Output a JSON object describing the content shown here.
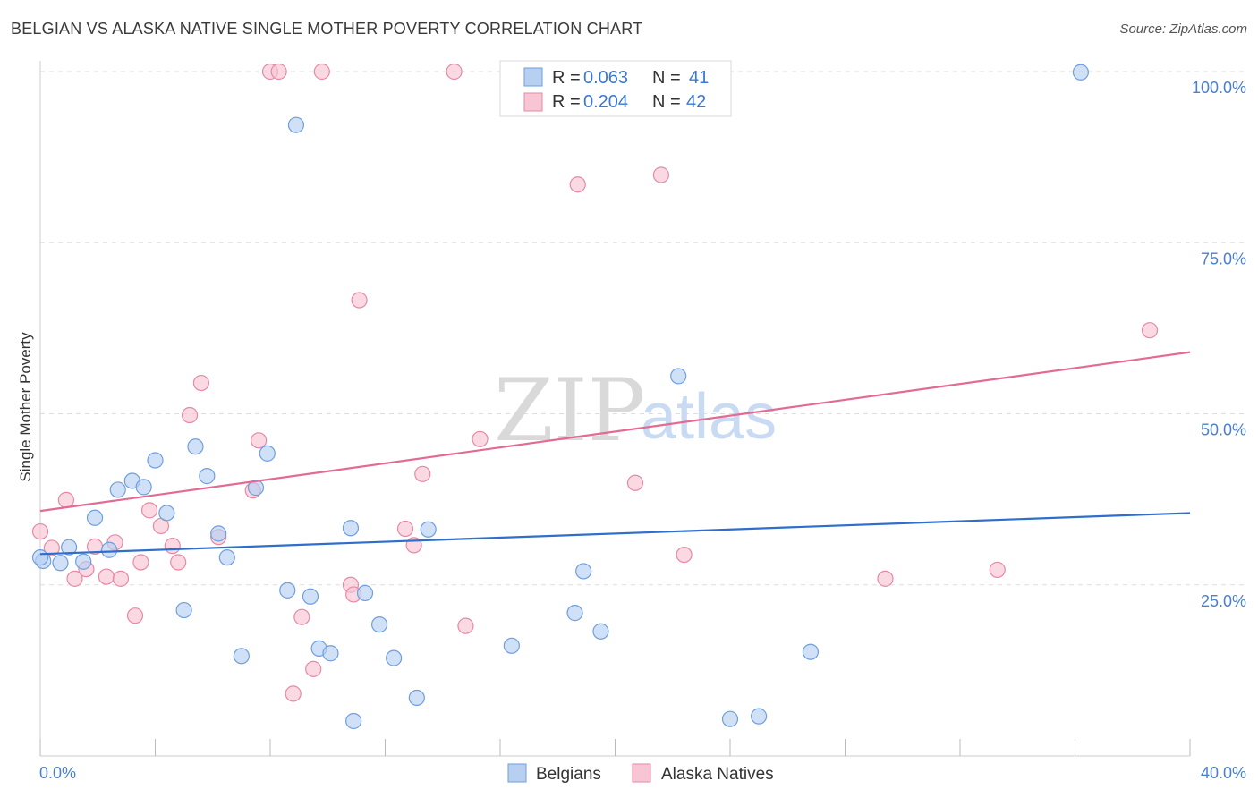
{
  "header": {
    "title": "BELGIAN VS ALASKA NATIVE SINGLE MOTHER POVERTY CORRELATION CHART",
    "source": "Source: ZipAtlas.com"
  },
  "watermark": {
    "zip": "ZIP",
    "atlas": "atlas"
  },
  "legend": {
    "rows": [
      {
        "r_label": "R = ",
        "r_value": "0.063",
        "n_label": "N = ",
        "n_value": "41"
      },
      {
        "r_label": "R = ",
        "r_value": "0.204",
        "n_label": "N = ",
        "n_value": "42"
      }
    ]
  },
  "bottom_legend": {
    "belgians": "Belgians",
    "alaska": "Alaska Natives"
  },
  "colors": {
    "belgians_fill": "#b7d0f2",
    "belgians_stroke": "#6f9fdc",
    "belgians_line": "#2f6fcc",
    "alaska_fill": "#f7c5d3",
    "alaska_stroke": "#e58aa6",
    "alaska_line": "#e36b93",
    "grid": "#dddddd",
    "axis_label": "#4a7fcf"
  },
  "chart_data": {
    "type": "scatter",
    "title": "BELGIAN VS ALASKA NATIVE SINGLE MOTHER POVERTY CORRELATION CHART",
    "xlabel": "",
    "ylabel": "Single Mother Poverty",
    "xlim": [
      0,
      40
    ],
    "ylim": [
      0,
      100
    ],
    "x_tick_labels": [
      "0.0%",
      "40.0%"
    ],
    "y_tick_labels": [
      "25.0%",
      "50.0%",
      "75.0%",
      "100.0%"
    ],
    "y_ticks": [
      25,
      50,
      75,
      100
    ],
    "grid": true,
    "series": [
      {
        "name": "Belgians",
        "R": 0.063,
        "N": 41,
        "trend": {
          "x": [
            0,
            40
          ],
          "y": [
            29.5,
            35.5
          ]
        },
        "points": [
          [
            0.1,
            28.5
          ],
          [
            0.7,
            28.2
          ],
          [
            1.0,
            30.5
          ],
          [
            1.5,
            28.4
          ],
          [
            1.9,
            34.8
          ],
          [
            2.4,
            30.1
          ],
          [
            2.7,
            38.9
          ],
          [
            3.2,
            40.2
          ],
          [
            3.6,
            39.3
          ],
          [
            4.0,
            43.2
          ],
          [
            4.4,
            35.5
          ],
          [
            5.0,
            21.3
          ],
          [
            5.4,
            45.2
          ],
          [
            5.8,
            40.9
          ],
          [
            6.2,
            32.5
          ],
          [
            6.5,
            29.0
          ],
          [
            7.0,
            14.6
          ],
          [
            7.5,
            39.2
          ],
          [
            7.9,
            44.2
          ],
          [
            8.6,
            24.2
          ],
          [
            8.9,
            92.2
          ],
          [
            9.4,
            23.3
          ],
          [
            9.7,
            15.7
          ],
          [
            10.1,
            15.0
          ],
          [
            10.8,
            33.3
          ],
          [
            10.9,
            5.1
          ],
          [
            11.3,
            23.8
          ],
          [
            11.8,
            19.2
          ],
          [
            12.3,
            14.3
          ],
          [
            13.1,
            8.5
          ],
          [
            13.5,
            33.1
          ],
          [
            16.4,
            16.1
          ],
          [
            18.6,
            20.9
          ],
          [
            18.9,
            27.0
          ],
          [
            19.5,
            18.2
          ],
          [
            22.2,
            55.5
          ],
          [
            24.0,
            5.4
          ],
          [
            25.0,
            5.8
          ],
          [
            26.8,
            15.2
          ],
          [
            36.2,
            99.9
          ],
          [
            0.0,
            29.0
          ]
        ]
      },
      {
        "name": "Alaska Natives",
        "R": 0.204,
        "N": 42,
        "trend": {
          "x": [
            0,
            40
          ],
          "y": [
            35.8,
            59.0
          ]
        },
        "points": [
          [
            0.0,
            32.8
          ],
          [
            0.4,
            30.4
          ],
          [
            0.9,
            37.4
          ],
          [
            1.2,
            25.9
          ],
          [
            1.6,
            27.3
          ],
          [
            1.9,
            30.6
          ],
          [
            2.3,
            26.2
          ],
          [
            2.6,
            31.2
          ],
          [
            2.8,
            25.9
          ],
          [
            3.3,
            20.5
          ],
          [
            3.5,
            28.3
          ],
          [
            3.8,
            35.9
          ],
          [
            4.2,
            33.6
          ],
          [
            4.6,
            30.7
          ],
          [
            4.8,
            28.3
          ],
          [
            5.2,
            49.8
          ],
          [
            5.6,
            54.5
          ],
          [
            6.2,
            32.0
          ],
          [
            7.4,
            38.8
          ],
          [
            7.6,
            46.1
          ],
          [
            8.0,
            100.0
          ],
          [
            8.3,
            100.0
          ],
          [
            8.8,
            9.1
          ],
          [
            9.1,
            20.3
          ],
          [
            9.5,
            12.7
          ],
          [
            9.8,
            100.0
          ],
          [
            10.8,
            25.0
          ],
          [
            10.9,
            23.6
          ],
          [
            11.1,
            66.6
          ],
          [
            12.7,
            33.2
          ],
          [
            13.0,
            30.8
          ],
          [
            13.3,
            41.2
          ],
          [
            14.4,
            100.0
          ],
          [
            14.8,
            19.0
          ],
          [
            15.3,
            46.3
          ],
          [
            18.7,
            83.5
          ],
          [
            20.7,
            39.9
          ],
          [
            21.6,
            84.9
          ],
          [
            22.4,
            29.4
          ],
          [
            29.4,
            25.9
          ],
          [
            33.3,
            27.2
          ],
          [
            38.6,
            62.2
          ]
        ]
      }
    ]
  }
}
